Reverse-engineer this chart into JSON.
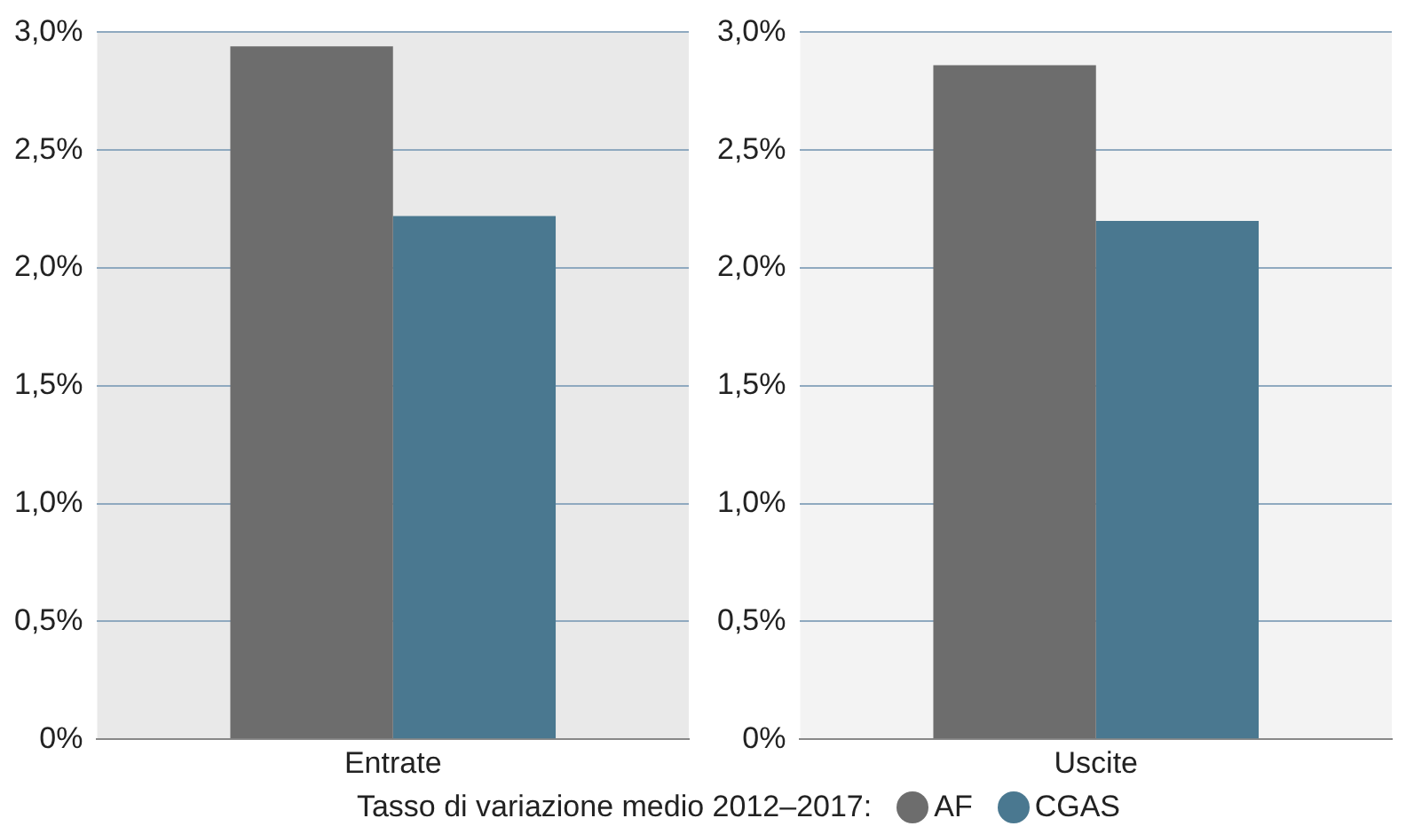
{
  "chart_data": [
    {
      "type": "bar",
      "categories": [
        "Entrate"
      ],
      "series": [
        {
          "name": "AF",
          "color": "#6d6d6d",
          "values": [
            2.94
          ]
        },
        {
          "name": "CGAS",
          "color": "#4a7890",
          "values": [
            2.22
          ]
        }
      ],
      "ylim": [
        0,
        3
      ],
      "yticks": [
        {
          "value": 0,
          "label": "0%"
        },
        {
          "value": 0.5,
          "label": "0,5%"
        },
        {
          "value": 1,
          "label": "1,0%"
        },
        {
          "value": 1.5,
          "label": "1,5%"
        },
        {
          "value": 2,
          "label": "2,0%"
        },
        {
          "value": 2.5,
          "label": "2,5%"
        },
        {
          "value": 3,
          "label": "3,0%"
        }
      ],
      "grid": "y",
      "legend": "bottom",
      "legend_title": "Tasso di variazione medio 2012–2017:"
    },
    {
      "type": "bar",
      "categories": [
        "Uscite"
      ],
      "series": [
        {
          "color": "#6d6d6d",
          "values": [
            2.86
          ]
        },
        {
          "color": "#4a7890",
          "values": [
            2.2
          ]
        }
      ],
      "ylim": [
        0,
        3
      ],
      "yticks": [
        {
          "value": 0,
          "label": "0%"
        },
        {
          "value": 0.5,
          "label": "0,5%"
        },
        {
          "value": 1,
          "label": "1,0%"
        },
        {
          "value": 1.5,
          "label": "1,5%"
        },
        {
          "value": 2,
          "label": "2,0%"
        },
        {
          "value": 2.5,
          "label": "2,5%"
        },
        {
          "value": 3,
          "label": "3,0%"
        }
      ],
      "grid": "y"
    }
  ]
}
